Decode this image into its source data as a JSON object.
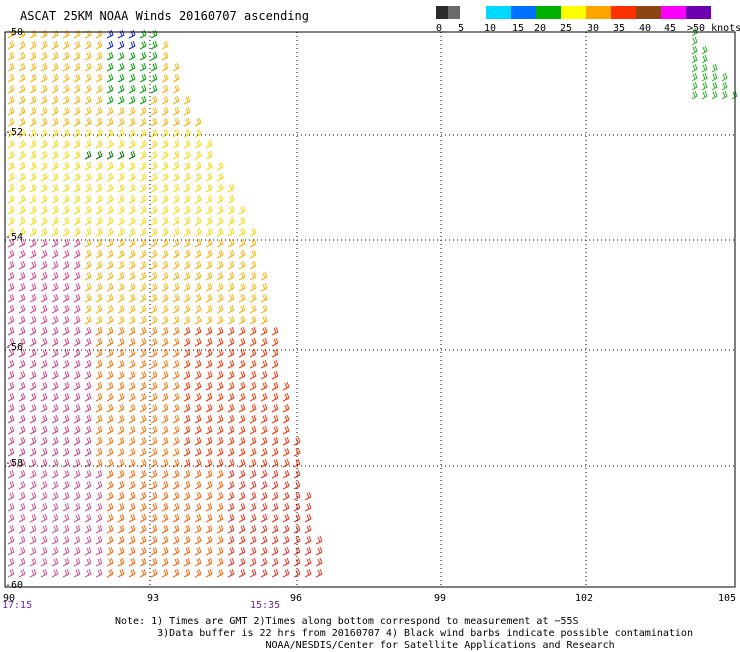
{
  "title": "ASCAT 25KM NOAA Winds 20160707 ascending",
  "scale": {
    "labels": [
      "0",
      "5",
      "10",
      "15",
      "20",
      "25",
      "30",
      "35",
      "40",
      "45",
      ">50 knots"
    ],
    "colors": [
      "#2b2b2b",
      "#6a6a6a",
      "#00d8ff",
      "#0070ff",
      "#00b000",
      "#ffff00",
      "#ffa500",
      "#ff3000",
      "#8b4513",
      "#ff00ff",
      "#6a00b0"
    ]
  },
  "axes": {
    "lat_labels": [
      "-50",
      "-52",
      "-54",
      "-56",
      "-58",
      "-60"
    ],
    "lon_labels": [
      "90",
      "93",
      "96",
      "99",
      "102",
      "105"
    ]
  },
  "times": [
    "17:15",
    "15:35"
  ],
  "notes": [
    "Note: 1) Times are GMT 2)Times along bottom correspond to measurement at −55S",
    "       3)Data buffer is 22 hrs from 20160707 4) Black wind barbs indicate possible contamination",
    "                         NOAA/NESDIS/Center for Satellite Applications and Research"
  ]
}
